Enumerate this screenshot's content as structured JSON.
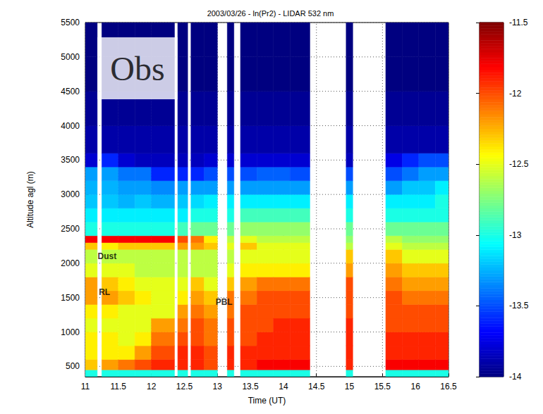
{
  "chart_data": {
    "type": "heatmap",
    "title": "2003/03/26 - ln(Pr2) - LIDAR 532 nm",
    "x_label": "Time (UT)",
    "y_label": "Altitude agl (m)",
    "xlim": [
      11,
      16.5
    ],
    "xticks": [
      11,
      11.5,
      12,
      12.5,
      13,
      13.5,
      14,
      14.5,
      15,
      15.5,
      16,
      16.5
    ],
    "ylim": [
      350,
      5500
    ],
    "yticks": [
      500,
      1000,
      1500,
      2000,
      2500,
      3000,
      3500,
      4000,
      4500,
      5000,
      5500
    ],
    "grid": true,
    "altitude_edges": [
      350,
      450,
      600,
      800,
      1000,
      1200,
      1400,
      1600,
      1800,
      2000,
      2200,
      2300,
      2400,
      2600,
      2800,
      3000,
      3200,
      3400,
      3600,
      4000,
      4500,
      5000,
      5500
    ],
    "columns": [
      {
        "start": 11,
        "end": 11.18,
        "values": [
          -13,
          -12.3,
          -12.4,
          -12.4,
          -12.5,
          -12.4,
          -12.2,
          -12.2,
          -12.5,
          -12.6,
          -12.3,
          -11.8,
          -13,
          -13.1,
          -13.2,
          -13.25,
          -13.3,
          -13.8,
          -13.9,
          -13.95,
          -14,
          -14
        ]
      },
      {
        "start": 11.25,
        "end": 11.5,
        "values": [
          -13,
          -12.2,
          -12.4,
          -12.4,
          -12.5,
          -12.4,
          -12.2,
          -12.3,
          -12.5,
          -12.6,
          -12.4,
          -11.8,
          -13,
          -13.1,
          -13.2,
          -13.25,
          -13.3,
          -13.6,
          -13.9,
          -13.95,
          -14,
          -14
        ]
      },
      {
        "start": 11.5,
        "end": 11.75,
        "values": [
          -13,
          -12.1,
          -12.4,
          -12.5,
          -12.5,
          -12.5,
          -12.3,
          -12.4,
          -12.5,
          -12.6,
          -12.3,
          -11.8,
          -13,
          -13.1,
          -13.25,
          -13.3,
          -13.4,
          -13.8,
          -13.9,
          -13.95,
          -14,
          -14
        ]
      },
      {
        "start": 11.75,
        "end": 12,
        "values": [
          -13,
          -12,
          -12.2,
          -12.4,
          -12.5,
          -12.5,
          -12.4,
          -12.5,
          -12.6,
          -12.6,
          -12.3,
          -11.8,
          -13,
          -13.1,
          -13.2,
          -13.3,
          -13.4,
          -13.85,
          -13.9,
          -13.95,
          -14,
          -14
        ]
      },
      {
        "start": 12,
        "end": 12.35,
        "values": [
          -13,
          -11.9,
          -12,
          -12.1,
          -12.2,
          -12.5,
          -12.5,
          -12.5,
          -12.6,
          -12.6,
          -12.3,
          -11.8,
          -13,
          -13.1,
          -13.25,
          -13.35,
          -13.6,
          -13.85,
          -13.9,
          -13.95,
          -14,
          -14
        ]
      },
      {
        "start": 12.4,
        "end": 12.55,
        "values": [
          -13,
          -11.9,
          -11.9,
          -12,
          -12.1,
          -12.2,
          -12.4,
          -12.5,
          -12.6,
          -12.6,
          -12.2,
          -12,
          -12.9,
          -13.1,
          -13.2,
          -13.3,
          -13.6,
          -13.85,
          -13.9,
          -13.95,
          -14,
          -14
        ]
      },
      {
        "start": 12.6,
        "end": 12.8,
        "values": [
          -13,
          -11.9,
          -11.9,
          -12,
          -12,
          -12.1,
          -12.2,
          -12.3,
          -12.6,
          -12.6,
          -12.2,
          -12.1,
          -12.8,
          -13,
          -13.15,
          -13.3,
          -13.6,
          -13.85,
          -13.9,
          -13.95,
          -14,
          -14
        ]
      },
      {
        "start": 12.8,
        "end": 13,
        "values": [
          -13,
          -12,
          -12,
          -12.1,
          -12.1,
          -12.2,
          -12.3,
          -12.5,
          -12.6,
          -12.6,
          -12.3,
          -12.4,
          -12.8,
          -13,
          -13.1,
          -13.3,
          -13.5,
          -13.8,
          -13.9,
          -13.95,
          -14,
          -14
        ]
      },
      {
        "start": 13.15,
        "end": 13.25,
        "values": [
          -13,
          -11.9,
          -11.9,
          -12,
          -12,
          -12.1,
          -12.1,
          -12.3,
          -12.5,
          -12.6,
          -12.5,
          -12.6,
          -12.8,
          -13,
          -13.1,
          -13.3,
          -13.5,
          -13.8,
          -13.9,
          -13.95,
          -14,
          -14
        ]
      },
      {
        "start": 13.35,
        "end": 13.6,
        "values": [
          -13,
          -11.9,
          -11.9,
          -12,
          -12,
          -12,
          -12.1,
          -12.2,
          -12.4,
          -12.5,
          -12.3,
          -12.5,
          -12.7,
          -12.9,
          -13.1,
          -13.3,
          -13.5,
          -13.8,
          -13.9,
          -13.95,
          -14,
          -14
        ]
      },
      {
        "start": 13.6,
        "end": 13.85,
        "values": [
          -13,
          -11.8,
          -11.9,
          -11.9,
          -12,
          -12,
          -12,
          -12.1,
          -12.4,
          -12.5,
          -12.5,
          -12.6,
          -12.7,
          -12.9,
          -13.1,
          -13.3,
          -13.45,
          -13.8,
          -13.9,
          -13.95,
          -14,
          -14
        ]
      },
      {
        "start": 13.85,
        "end": 14.1,
        "values": [
          -13,
          -11.8,
          -11.9,
          -11.9,
          -11.9,
          -12,
          -12,
          -12.1,
          -12.4,
          -12.5,
          -12.5,
          -12.6,
          -12.7,
          -12.9,
          -13.1,
          -13.3,
          -13.45,
          -13.8,
          -13.9,
          -13.95,
          -14,
          -14
        ]
      },
      {
        "start": 14.1,
        "end": 14.4,
        "values": [
          -13,
          -11.8,
          -11.9,
          -11.9,
          -11.9,
          -12,
          -12,
          -12.1,
          -12.4,
          -12.5,
          -12.5,
          -12.6,
          -12.7,
          -12.9,
          -13.1,
          -13.3,
          -13.5,
          -13.8,
          -13.9,
          -13.95,
          -14,
          -14
        ]
      },
      {
        "start": 14.95,
        "end": 15.05,
        "values": [
          -13,
          -11.9,
          -11.9,
          -11.9,
          -11.9,
          -12,
          -12,
          -12,
          -12.2,
          -12.3,
          -12.6,
          -12.7,
          -12.8,
          -13,
          -13.1,
          -13.3,
          -13.5,
          -13.85,
          -13.9,
          -13.95,
          -14,
          -14
        ]
      },
      {
        "start": 15.55,
        "end": 15.8,
        "values": [
          -13,
          -11.8,
          -11.9,
          -11.9,
          -12,
          -12,
          -12,
          -12.1,
          -12.2,
          -12.3,
          -12.5,
          -12.6,
          -12.8,
          -13,
          -13.1,
          -13.3,
          -13.5,
          -13.75,
          -13.9,
          -13.95,
          -14,
          -14
        ]
      },
      {
        "start": 15.8,
        "end": 16.05,
        "values": [
          -13,
          -11.8,
          -11.9,
          -11.9,
          -12,
          -12,
          -12.1,
          -12.2,
          -12.3,
          -12.5,
          -12.6,
          -12.7,
          -12.8,
          -13,
          -13.1,
          -13.2,
          -13.4,
          -13.6,
          -13.9,
          -13.95,
          -14,
          -14
        ]
      },
      {
        "start": 16.05,
        "end": 16.3,
        "values": [
          -13,
          -11.8,
          -11.9,
          -11.9,
          -12,
          -12,
          -12.1,
          -12.2,
          -12.3,
          -12.5,
          -12.6,
          -12.7,
          -12.8,
          -13,
          -13.1,
          -13.2,
          -13.3,
          -13.5,
          -13.9,
          -13.95,
          -14,
          -14
        ]
      },
      {
        "start": 16.3,
        "end": 16.5,
        "values": [
          -13,
          -11.8,
          -11.9,
          -11.9,
          -12,
          -12,
          -12.1,
          -12.2,
          -12.3,
          -12.5,
          -12.6,
          -12.7,
          -12.8,
          -13,
          -13,
          -13.1,
          -13.3,
          -13.5,
          -13.9,
          -13.95,
          -14,
          -14
        ]
      }
    ],
    "colorbar": {
      "range": [
        -14,
        -11.5
      ],
      "ticks": [
        -14,
        -13.5,
        -13,
        -12.5,
        -12,
        -11.5
      ]
    },
    "annotations": [
      {
        "text": "Dust",
        "x": 11.33,
        "y": 2100
      },
      {
        "text": "RL",
        "x": 11.29,
        "y": 1575
      },
      {
        "text": "PBL",
        "x": 13.1,
        "y": 1440
      }
    ],
    "inset_label": {
      "text": "Obs",
      "x": 11.79,
      "y": 4834
    }
  }
}
